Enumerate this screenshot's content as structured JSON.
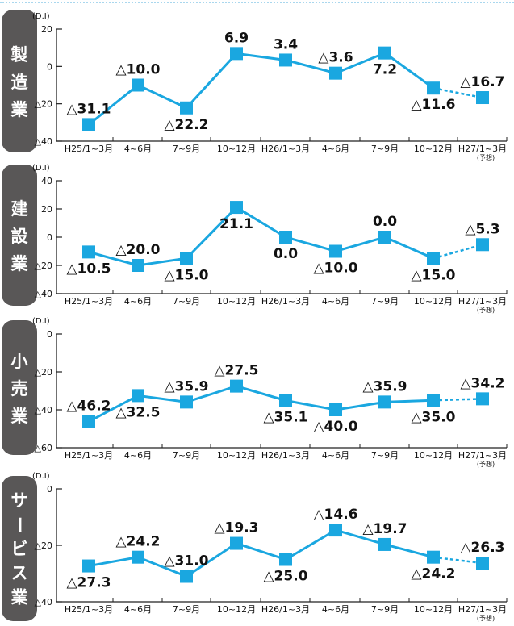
{
  "colors": {
    "series": "#1aa7e0",
    "panel": "#595757",
    "panel_text": "#ffffff",
    "axis": "#222222"
  },
  "chart_data": [
    {
      "type": "line",
      "side_label": "製造業",
      "unit": "(D.I)",
      "ylim": [
        -40,
        20
      ],
      "yticks": [
        20,
        0,
        -20,
        -40
      ],
      "ytick_labels": [
        "20",
        "0",
        "△20",
        "△40"
      ],
      "categories": [
        "H25/1~3月",
        "4~6月",
        "7~9月",
        "10~12月",
        "H26/1~3月",
        "4~6月",
        "7~9月",
        "10~12月",
        "H27/1~3月"
      ],
      "forecast_note": "(予想)",
      "values": [
        -31.1,
        -10.0,
        -22.2,
        6.9,
        3.4,
        -3.6,
        7.2,
        -11.6,
        -16.7
      ],
      "labels": [
        "△31.1",
        "△10.0",
        "△22.2",
        "6.9",
        "3.4",
        "△3.6",
        "7.2",
        "△11.6",
        "△16.7"
      ],
      "label_pos": [
        "above",
        "above",
        "below",
        "above",
        "above",
        "above",
        "below",
        "below",
        "above"
      ]
    },
    {
      "type": "line",
      "side_label": "建設業",
      "unit": "(D.I)",
      "ylim": [
        -40,
        40
      ],
      "yticks": [
        40,
        20,
        0,
        -20,
        -40
      ],
      "ytick_labels": [
        "40",
        "20",
        "0",
        "△20",
        "△40"
      ],
      "categories": [
        "H25/1~3月",
        "4~6月",
        "7~9月",
        "10~12月",
        "H26/1~3月",
        "4~6月",
        "7~9月",
        "10~12月",
        "H27/1~3月"
      ],
      "forecast_note": "(予想)",
      "values": [
        -10.5,
        -20.0,
        -15.0,
        21.1,
        0.0,
        -10.0,
        0.0,
        -15.0,
        -5.3
      ],
      "labels": [
        "△10.5",
        "△20.0",
        "△15.0",
        "21.1",
        "0.0",
        "△10.0",
        "0.0",
        "△15.0",
        "△5.3"
      ],
      "label_pos": [
        "below",
        "above",
        "below",
        "below",
        "below",
        "below",
        "above",
        "below",
        "above"
      ]
    },
    {
      "type": "line",
      "side_label": "小売業",
      "unit": "(D.I)",
      "ylim": [
        -60,
        0
      ],
      "yticks": [
        0,
        -20,
        -40,
        -60
      ],
      "ytick_labels": [
        "0",
        "△20",
        "△40",
        "△60"
      ],
      "categories": [
        "H25/1~3月",
        "4~6月",
        "7~9月",
        "10~12月",
        "H26/1~3月",
        "4~6月",
        "7~9月",
        "10~12月",
        "H27/1~3月"
      ],
      "forecast_note": "(予想)",
      "values": [
        -46.2,
        -32.5,
        -35.9,
        -27.5,
        -35.1,
        -40.0,
        -35.9,
        -35.0,
        -34.2
      ],
      "labels": [
        "△46.2",
        "△32.5",
        "△35.9",
        "△27.5",
        "△35.1",
        "△40.0",
        "△35.9",
        "△35.0",
        "△34.2"
      ],
      "label_pos": [
        "above",
        "below",
        "above",
        "above",
        "below",
        "below",
        "above",
        "below",
        "above"
      ]
    },
    {
      "type": "line",
      "side_label": "サービス業",
      "unit": "(D.I)",
      "ylim": [
        -40,
        0
      ],
      "yticks": [
        0,
        -20,
        -40
      ],
      "ytick_labels": [
        "0",
        "△20",
        "△40"
      ],
      "categories": [
        "H25/1~3月",
        "4~6月",
        "7~9月",
        "10~12月",
        "H26/1~3月",
        "4~6月",
        "7~9月",
        "10~12月",
        "H27/1~3月"
      ],
      "forecast_note": "(予想)",
      "values": [
        -27.3,
        -24.2,
        -31.0,
        -19.3,
        -25.0,
        -14.6,
        -19.7,
        -24.2,
        -26.3
      ],
      "labels": [
        "△27.3",
        "△24.2",
        "△31.0",
        "△19.3",
        "△25.0",
        "△14.6",
        "△19.7",
        "△24.2",
        "△26.3"
      ],
      "label_pos": [
        "below",
        "above",
        "above",
        "above",
        "below",
        "above",
        "above",
        "below",
        "above"
      ]
    }
  ]
}
